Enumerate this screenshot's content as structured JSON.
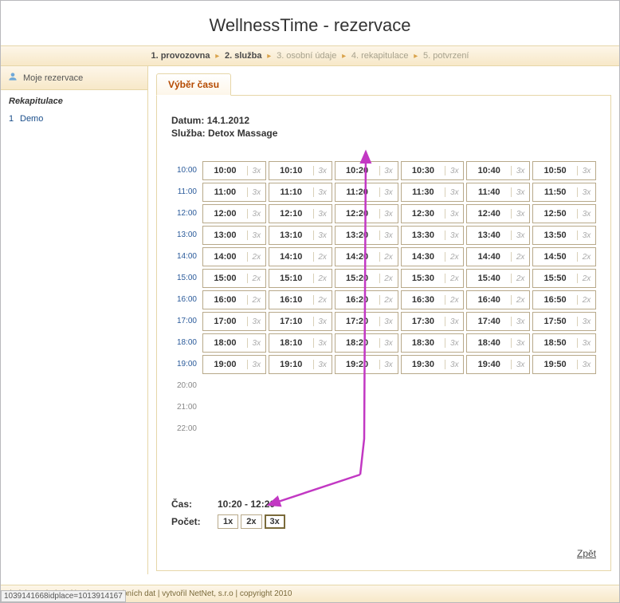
{
  "header": {
    "title": "WellnessTime - rezervace"
  },
  "breadcrumb": {
    "steps": [
      {
        "label": "1. provozovna",
        "active": true
      },
      {
        "label": "2. služba",
        "active": true
      },
      {
        "label": "3. osobní údaje",
        "active": false
      },
      {
        "label": "4. rekapitulace",
        "active": false
      },
      {
        "label": "5. potvrzení",
        "active": false
      }
    ]
  },
  "sidebar": {
    "header": "Moje rezervace",
    "section": "Rekapitulace",
    "items": [
      {
        "n": "1",
        "label": "Demo"
      }
    ]
  },
  "tab": {
    "label": "Výběr času"
  },
  "info": {
    "date_label": "Datum:",
    "date_value": "14.1.2012",
    "service_label": "Služba:",
    "service_value": "Detox Massage"
  },
  "grid": {
    "hours_with_slots": [
      "10:00",
      "11:00",
      "12:00",
      "13:00",
      "14:00",
      "15:00",
      "16:00",
      "17:00",
      "18:00",
      "19:00"
    ],
    "empty_hours": [
      "20:00",
      "21:00",
      "22:00"
    ],
    "minutes": [
      "00",
      "10",
      "20",
      "30",
      "40",
      "50"
    ],
    "counts": {
      "10": "3x",
      "11": "3x",
      "12": "3x",
      "13": "3x",
      "14": "2x",
      "15": "2x",
      "16": "2x",
      "17": "3x",
      "18": "3x",
      "19": "3x"
    }
  },
  "selection": {
    "time_label": "Čas:",
    "time_value": "10:20 - 12:20",
    "count_label": "Počet:",
    "counts": [
      "1x",
      "2x",
      "3x"
    ],
    "selected_count": "3x"
  },
  "back_label": "Zpět",
  "footer": {
    "text": "dmínky a ujednání | ochrana osobních dat | vytvořil NetNet, s.r.o | copyright 2010"
  },
  "status_url": "1039141668idplace=1013914167",
  "colors": {
    "accent_bg_light": "#fdf6e9",
    "accent_bg_dark": "#f7e8c8",
    "accent_border": "#e6d6a8",
    "arrow": "#c238c3"
  }
}
